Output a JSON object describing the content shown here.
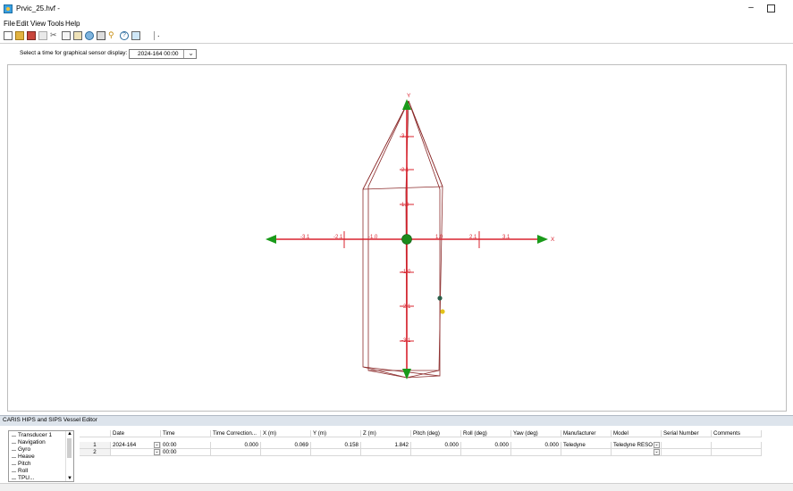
{
  "window": {
    "title": "Prvic_25.hvf -"
  },
  "menu": [
    "File",
    "Edit",
    "View",
    "Tools",
    "Help"
  ],
  "toolbar_icons": [
    "new-file-icon",
    "open-folder-icon",
    "save-icon",
    "print-icon",
    "cut-icon",
    "copy-icon",
    "paste-icon",
    "sensor-icon",
    "chart-icon",
    "wand-icon",
    "help-icon",
    "settings-icon"
  ],
  "selector": {
    "label": "Select a time for graphical sensor display:",
    "value": "2024-164 00:00"
  },
  "view3d": {
    "x_axis_label": "X",
    "y_axis_label": "Y",
    "x_ticks": [
      "-3.1",
      "-2.1",
      "-1.0",
      "1.0",
      "2.1",
      "3.1"
    ],
    "y_ticks": [
      "3.1",
      "2.1",
      "1.0",
      "-1.0",
      "-2.1",
      "-3.1"
    ]
  },
  "panel": {
    "title": "CARIS HIPS and SIPS Vessel Editor"
  },
  "tree": [
    "Transducer 1",
    "Navigation",
    "Gyro",
    "Heave",
    "Pitch",
    "Roll",
    "TPU..."
  ],
  "table": {
    "headers": [
      "Date",
      "Time",
      "Time Correction...",
      "X (m)",
      "Y (m)",
      "Z (m)",
      "Pitch (deg)",
      "Roll (deg)",
      "Yaw (deg)",
      "Manufacturer",
      "Model",
      "Serial Number",
      "Comments"
    ],
    "rows": [
      {
        "num": "1",
        "date": "2024-164",
        "time": "00:00",
        "tc": "0.000",
        "x": "0.069",
        "y": "0.158",
        "z": "1.842",
        "pitch": "0.000",
        "roll": "0.000",
        "yaw": "0.000",
        "manufacturer": "Teledyne",
        "model": "Teledyne RESO",
        "serial": "",
        "comments": ""
      },
      {
        "num": "2",
        "date": "",
        "time": "00:00",
        "tc": "",
        "x": "",
        "y": "",
        "z": "",
        "pitch": "",
        "roll": "",
        "yaw": "",
        "manufacturer": "",
        "model": "",
        "serial": "",
        "comments": ""
      }
    ]
  },
  "colors": {
    "axis": "#d9232e",
    "vessel": "#8b2a2a",
    "arrow": "#1a9a1a",
    "panel_header": "#dde4ec"
  }
}
